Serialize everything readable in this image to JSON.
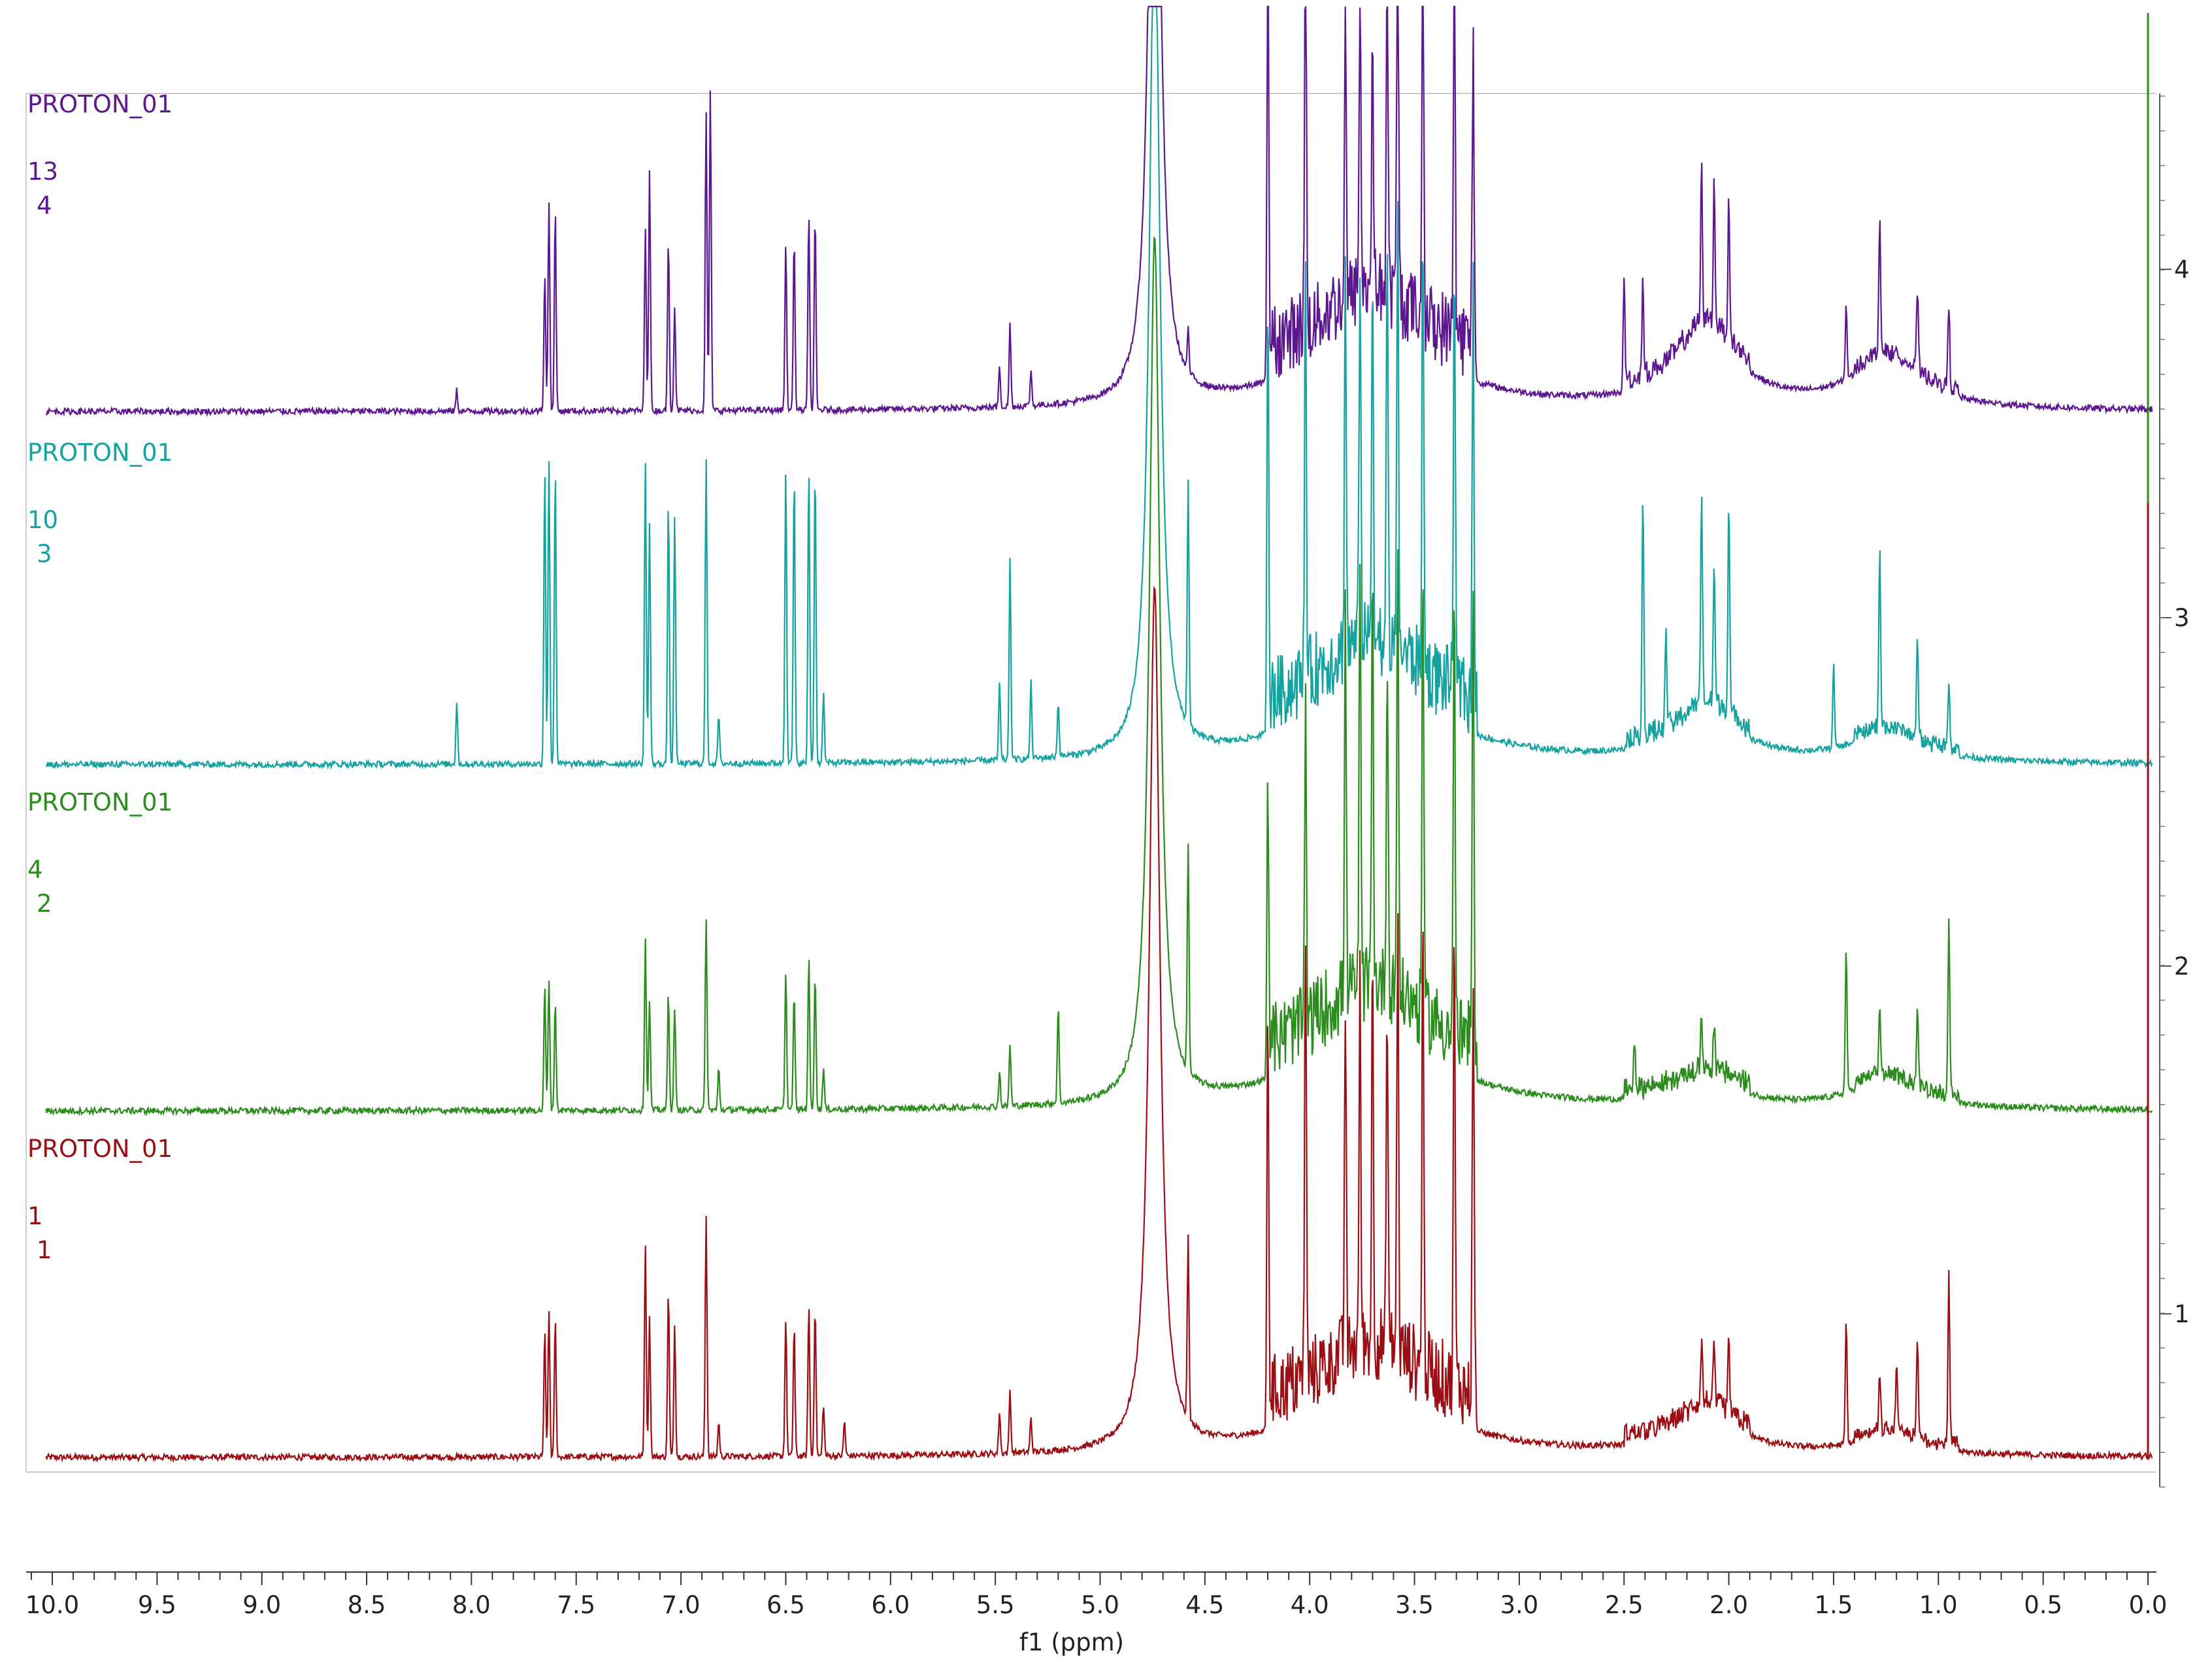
{
  "chart_data": {
    "type": "line",
    "xlabel": "f1 (ppm)",
    "xlim": [
      10.1,
      -0.05
    ],
    "x_axis_reversed": true,
    "x_ticks": [
      "10.0",
      "9.5",
      "9.0",
      "8.5",
      "8.0",
      "7.5",
      "7.0",
      "6.5",
      "6.0",
      "5.5",
      "5.0",
      "4.5",
      "4.0",
      "3.5",
      "3.0",
      "2.5",
      "2.0",
      "1.5",
      "1.0",
      "0.5",
      "0.0"
    ],
    "right_axis_ticks": [
      "1",
      "2",
      "3",
      "4"
    ],
    "grid": false,
    "series": [
      {
        "name": "PROTON_01",
        "label_line2": "1",
        "label_line3": "1",
        "index": 1,
        "color": "#9b0f14",
        "peaks": [
          [
            7.65,
            0.36
          ],
          [
            7.63,
            0.42
          ],
          [
            7.6,
            0.4
          ],
          [
            7.17,
            0.62
          ],
          [
            7.15,
            0.4
          ],
          [
            7.06,
            0.48
          ],
          [
            7.03,
            0.38
          ],
          [
            6.88,
            0.7
          ],
          [
            6.82,
            0.1
          ],
          [
            6.5,
            0.4
          ],
          [
            6.46,
            0.38
          ],
          [
            6.39,
            0.44
          ],
          [
            6.36,
            0.44
          ],
          [
            6.32,
            0.15
          ],
          [
            6.22,
            0.1
          ],
          [
            5.48,
            0.12
          ],
          [
            5.43,
            0.18
          ],
          [
            5.33,
            0.1
          ],
          [
            4.58,
            0.52
          ],
          [
            4.2,
            1.2
          ],
          [
            4.02,
            1.3
          ],
          [
            3.83,
            1.0
          ],
          [
            3.76,
            1.05
          ],
          [
            3.7,
            1.1
          ],
          [
            3.63,
            1.0
          ],
          [
            3.58,
            1.25
          ],
          [
            3.46,
            1.3
          ],
          [
            3.31,
            1.3
          ],
          [
            3.22,
            1.25
          ],
          [
            2.13,
            0.18
          ],
          [
            2.07,
            0.16
          ],
          [
            2.0,
            0.2
          ],
          [
            1.44,
            0.36
          ],
          [
            1.28,
            0.16
          ],
          [
            1.2,
            0.2
          ],
          [
            1.1,
            0.28
          ],
          [
            0.95,
            0.48
          ]
        ],
        "broad_peaks": [
          [
            4.74,
            2.5,
            0.03
          ],
          [
            3.7,
            0.22,
            0.35
          ],
          [
            2.1,
            0.12,
            0.18
          ],
          [
            1.25,
            0.05,
            0.2
          ]
        ]
      },
      {
        "name": "PROTON_01",
        "label_line2": "4",
        "label_line3": "2",
        "index": 2,
        "color": "#2c8c1e",
        "peaks": [
          [
            7.65,
            0.36
          ],
          [
            7.63,
            0.38
          ],
          [
            7.6,
            0.32
          ],
          [
            7.17,
            0.5
          ],
          [
            7.15,
            0.32
          ],
          [
            7.06,
            0.34
          ],
          [
            7.03,
            0.3
          ],
          [
            6.88,
            0.56
          ],
          [
            6.82,
            0.12
          ],
          [
            6.5,
            0.4
          ],
          [
            6.46,
            0.34
          ],
          [
            6.39,
            0.44
          ],
          [
            6.36,
            0.4
          ],
          [
            6.32,
            0.12
          ],
          [
            5.48,
            0.1
          ],
          [
            5.43,
            0.18
          ],
          [
            5.2,
            0.28
          ],
          [
            4.58,
            0.65
          ],
          [
            4.2,
            0.88
          ],
          [
            4.02,
            0.9
          ],
          [
            3.83,
            1.1
          ],
          [
            3.76,
            1.15
          ],
          [
            3.7,
            1.2
          ],
          [
            3.63,
            1.0
          ],
          [
            3.58,
            1.3
          ],
          [
            3.46,
            1.3
          ],
          [
            3.31,
            1.3
          ],
          [
            3.22,
            1.25
          ],
          [
            2.45,
            0.14
          ],
          [
            2.13,
            0.16
          ],
          [
            2.07,
            0.14
          ],
          [
            1.44,
            0.42
          ],
          [
            1.28,
            0.2
          ],
          [
            1.1,
            0.22
          ],
          [
            0.95,
            0.48
          ]
        ],
        "broad_peaks": [
          [
            4.74,
            2.5,
            0.03
          ],
          [
            3.7,
            0.26,
            0.35
          ],
          [
            2.1,
            0.08,
            0.18
          ],
          [
            1.25,
            0.08,
            0.2
          ]
        ]
      },
      {
        "name": "PROTON_01",
        "label_line2": "10",
        "label_line3": "3",
        "index": 3,
        "color": "#14a3a0",
        "peaks": [
          [
            8.07,
            0.18
          ],
          [
            7.65,
            0.86
          ],
          [
            7.63,
            0.88
          ],
          [
            7.6,
            0.86
          ],
          [
            7.17,
            0.88
          ],
          [
            7.15,
            0.7
          ],
          [
            7.06,
            0.76
          ],
          [
            7.03,
            0.72
          ],
          [
            6.88,
            0.88
          ],
          [
            6.82,
            0.14
          ],
          [
            6.5,
            0.86
          ],
          [
            6.46,
            0.84
          ],
          [
            6.39,
            0.86
          ],
          [
            6.36,
            0.86
          ],
          [
            6.32,
            0.2
          ],
          [
            5.48,
            0.22
          ],
          [
            5.43,
            0.58
          ],
          [
            5.33,
            0.22
          ],
          [
            5.2,
            0.16
          ],
          [
            4.58,
            0.7
          ],
          [
            4.2,
            1.2
          ],
          [
            4.02,
            1.2
          ],
          [
            3.83,
            1.1
          ],
          [
            3.76,
            1.15
          ],
          [
            3.7,
            1.1
          ],
          [
            3.63,
            1.1
          ],
          [
            3.58,
            1.25
          ],
          [
            3.46,
            1.3
          ],
          [
            3.31,
            1.3
          ],
          [
            3.22,
            1.2
          ],
          [
            2.41,
            0.7
          ],
          [
            2.3,
            0.28
          ],
          [
            2.13,
            0.62
          ],
          [
            2.07,
            0.4
          ],
          [
            2.0,
            0.62
          ],
          [
            1.5,
            0.24
          ],
          [
            1.28,
            0.52
          ],
          [
            1.1,
            0.28
          ],
          [
            0.95,
            0.2
          ]
        ],
        "broad_peaks": [
          [
            4.74,
            2.5,
            0.03
          ],
          [
            3.7,
            0.25,
            0.35
          ],
          [
            2.1,
            0.14,
            0.18
          ],
          [
            1.25,
            0.08,
            0.2
          ]
        ]
      },
      {
        "name": "PROTON_01",
        "label_line2": "13",
        "label_line3": "4",
        "index": 4,
        "color": "#5d178f",
        "peaks": [
          [
            8.07,
            0.06
          ],
          [
            7.65,
            0.4
          ],
          [
            7.63,
            0.6
          ],
          [
            7.6,
            0.58
          ],
          [
            7.17,
            0.52
          ],
          [
            7.15,
            0.7
          ],
          [
            7.06,
            0.5
          ],
          [
            7.03,
            0.3
          ],
          [
            6.88,
            0.86
          ],
          [
            6.86,
            0.92
          ],
          [
            6.5,
            0.48
          ],
          [
            6.46,
            0.5
          ],
          [
            6.39,
            0.58
          ],
          [
            6.36,
            0.56
          ],
          [
            5.48,
            0.12
          ],
          [
            5.43,
            0.24
          ],
          [
            5.33,
            0.1
          ],
          [
            4.58,
            0.12
          ],
          [
            4.2,
            1.2
          ],
          [
            4.02,
            1.2
          ],
          [
            3.83,
            0.8
          ],
          [
            3.76,
            0.9
          ],
          [
            3.7,
            0.8
          ],
          [
            3.63,
            1.0
          ],
          [
            3.58,
            1.2
          ],
          [
            3.46,
            1.3
          ],
          [
            3.31,
            1.3
          ],
          [
            3.22,
            0.9
          ],
          [
            2.5,
            0.32
          ],
          [
            2.41,
            0.28
          ],
          [
            2.13,
            0.44
          ],
          [
            2.07,
            0.4
          ],
          [
            2.0,
            0.4
          ],
          [
            1.44,
            0.22
          ],
          [
            1.28,
            0.4
          ],
          [
            1.1,
            0.24
          ],
          [
            0.95,
            0.24
          ]
        ],
        "broad_peaks": [
          [
            4.74,
            2.5,
            0.03
          ],
          [
            3.7,
            0.24,
            0.35
          ],
          [
            2.1,
            0.22,
            0.18
          ],
          [
            1.25,
            0.14,
            0.2
          ]
        ]
      }
    ]
  }
}
